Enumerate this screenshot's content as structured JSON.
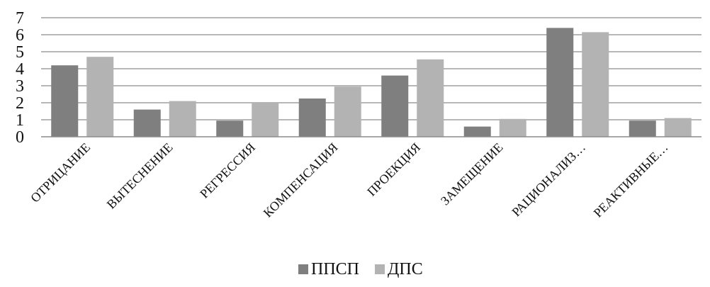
{
  "chart_data": {
    "type": "bar",
    "categories": [
      "ОТРИЦАНИЕ",
      "ВЫТЕСНЕНИЕ",
      "РЕГРЕССИЯ",
      "КОМПЕНСАЦИЯ",
      "ПРОЕКЦИЯ",
      "ЗАМЕЩЕНИЕ",
      "РАЦИОНАЛИЗ…",
      "РЕАКТИВНЫЕ…"
    ],
    "series": [
      {
        "name": "ППСП",
        "color": "#7f7f7f",
        "values": [
          4.2,
          1.6,
          0.95,
          2.25,
          3.6,
          0.6,
          6.4,
          0.95
        ]
      },
      {
        "name": "ДПС",
        "color": "#b3b3b3",
        "values": [
          4.7,
          2.1,
          2.0,
          2.95,
          4.55,
          1.05,
          6.15,
          1.1
        ]
      }
    ],
    "yticks": [
      "0",
      "1",
      "2",
      "3",
      "4",
      "5",
      "6",
      "7"
    ],
    "ylim": [
      0,
      7
    ],
    "grid": true,
    "legend_position": "bottom",
    "title": "",
    "xlabel": "",
    "ylabel": ""
  }
}
